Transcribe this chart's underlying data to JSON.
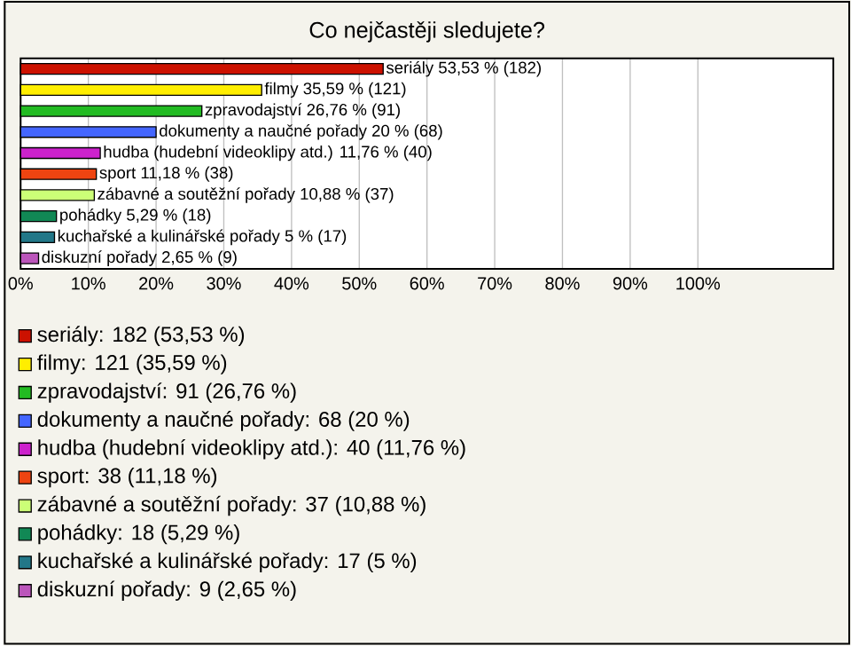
{
  "chart_data": {
    "type": "bar",
    "orientation": "horizontal",
    "title": "Co nejčastěji sledujete?",
    "categories": [
      null,
      null,
      null,
      null,
      null,
      null,
      null,
      null,
      null,
      null
    ],
    "values": [
      53.53,
      35.59,
      26.76,
      20,
      11.76,
      11.18,
      10.88,
      5.29,
      5,
      2.65
    ],
    "value_labels": [
      "seriály 53,53 % (182)",
      "filmy 35,59 % (121)",
      "zpravodajství 26,76 % (91)",
      "dokumenty a naučné pořady 20 % (68)",
      "hudba (hudební videoklipy atd.) 11,76 % (40)",
      "sport 11,18 % (38)",
      "zábavné a soutěžní pořady 10,88 % (37)",
      "pohádky 5,29 % (18)",
      "kuchařské a kulinářské pořady 5 % (17)",
      "diskuzní pořady 2,65 % (9)"
    ],
    "colors": [
      "#cc1100",
      "#ffee00",
      "#22bb22",
      "#4466ff",
      "#cc22cc",
      "#ee4411",
      "#ccff77",
      "#118855",
      "#227788",
      "#bb55bb"
    ],
    "xlim": [
      0,
      120
    ],
    "xticks": [
      {
        "value": 0,
        "label": "0%"
      },
      {
        "value": 10,
        "label": "10%"
      },
      {
        "value": 20,
        "label": "20%"
      },
      {
        "value": 30,
        "label": "30%"
      },
      {
        "value": 40,
        "label": "40%"
      },
      {
        "value": 50,
        "label": "50%"
      },
      {
        "value": 60,
        "label": "60%"
      },
      {
        "value": 70,
        "label": "70%"
      },
      {
        "value": 80,
        "label": "80%"
      },
      {
        "value": 90,
        "label": "90%"
      },
      {
        "value": 100,
        "label": "100%"
      }
    ],
    "grid": "x",
    "annotations": [
      "seriály: 182 (53,53 %)",
      "filmy: 121 (35,59 %)",
      "zpravodajství: 91 (26,76 %)",
      "dokumenty a naučné pořady: 68 (20 %)",
      "hudba (hudební videoklipy atd.): 40 (11,76 %)",
      "sport: 38 (11,18 %)",
      "zábavné a soutěžní pořady: 37 (10,88 %)",
      "pohádky: 18 (5,29 %)",
      "kuchařské a kulinářské pořady: 17 (5 %)",
      "diskuzní pořady: 9 (2,65 %)"
    ]
  }
}
